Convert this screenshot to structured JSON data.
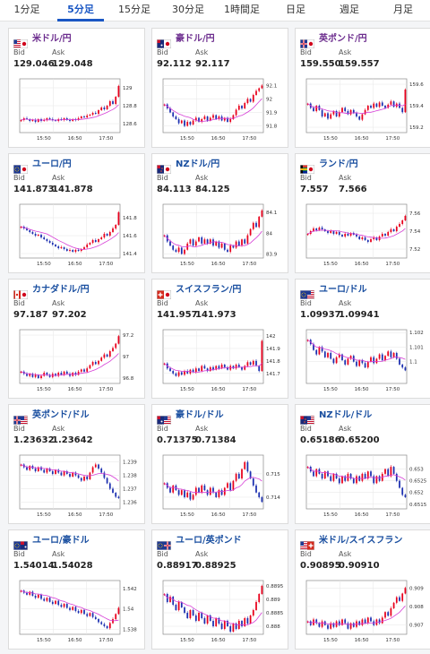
{
  "tabs": [
    {
      "label": "1分足",
      "active": false
    },
    {
      "label": "5分足",
      "active": true
    },
    {
      "label": "15分足",
      "active": false
    },
    {
      "label": "30分足",
      "active": false
    },
    {
      "label": "1時間足",
      "active": false
    },
    {
      "label": "日足",
      "active": false
    },
    {
      "label": "週足",
      "active": false
    },
    {
      "label": "月足",
      "active": false
    }
  ],
  "labels": {
    "bid": "Bid",
    "ask": "Ask"
  },
  "x_ticks": [
    "15:50",
    "16:50",
    "17:50"
  ],
  "colors": {
    "up": "#e8001c",
    "down": "#1c2fb0",
    "ma": "#d63dd6",
    "grid": "#e6e6e6",
    "frame": "#8a8a8a"
  },
  "cards": [
    {
      "pair": "米ドル/円",
      "flag": "flag-us-jp",
      "bid": "129.046",
      "ask": "129.048",
      "chart_data": {
        "type": "candlestick",
        "ylim": [
          128.5,
          129.1
        ],
        "yticks": [
          "129",
          "128.8",
          "128.6"
        ],
        "ytick_values": [
          129,
          128.8,
          128.6
        ],
        "close": [
          128.64,
          128.66,
          128.65,
          128.63,
          128.64,
          128.62,
          128.65,
          128.63,
          128.64,
          128.66,
          128.65,
          128.64,
          128.63,
          128.65,
          128.64,
          128.66,
          128.64,
          128.63,
          128.65,
          128.64,
          128.66,
          128.68,
          128.67,
          128.69,
          128.7,
          128.72,
          128.71,
          128.75,
          128.78,
          128.76,
          128.8,
          128.85,
          128.82,
          128.9,
          129.02
        ]
      }
    },
    {
      "pair": "豪ドル/円",
      "flag": "flag-au-jp",
      "bid": "92.112",
      "ask": "92.117",
      "chart_data": {
        "type": "candlestick",
        "ylim": [
          91.75,
          92.15
        ],
        "yticks": [
          "92.1",
          "92",
          "91.9",
          "91.8"
        ],
        "ytick_values": [
          92.1,
          92,
          91.9,
          91.8
        ],
        "close": [
          91.96,
          91.93,
          91.9,
          91.87,
          91.85,
          91.82,
          91.84,
          91.8,
          91.83,
          91.81,
          91.84,
          91.86,
          91.83,
          91.85,
          91.87,
          91.84,
          91.86,
          91.88,
          91.85,
          91.87,
          91.84,
          91.86,
          91.83,
          91.85,
          91.88,
          91.92,
          91.95,
          91.93,
          91.97,
          92.0,
          91.98,
          92.03,
          92.06,
          92.08,
          92.1
        ]
      }
    },
    {
      "pair": "英ポンド/円",
      "flag": "flag-uk-jp",
      "bid": "159.550",
      "ask": "159.557",
      "chart_data": {
        "type": "candlestick",
        "ylim": [
          159.15,
          159.65
        ],
        "yticks": [
          "159.6",
          "159.4",
          "159.2"
        ],
        "ytick_values": [
          159.6,
          159.4,
          159.2
        ],
        "close": [
          159.42,
          159.38,
          159.35,
          159.4,
          159.36,
          159.3,
          159.33,
          159.28,
          159.32,
          159.35,
          159.3,
          159.34,
          159.38,
          159.35,
          159.32,
          159.36,
          159.33,
          159.3,
          159.27,
          159.32,
          159.36,
          159.4,
          159.38,
          159.42,
          159.39,
          159.43,
          159.4,
          159.38,
          159.41,
          159.44,
          159.39,
          159.42,
          159.38,
          159.34,
          159.55
        ]
      }
    },
    {
      "pair": "ユーロ/円",
      "flag": "flag-eu-jp",
      "bid": "141.873",
      "ask": "141.878",
      "chart_data": {
        "type": "candlestick",
        "ylim": [
          141.35,
          141.95
        ],
        "yticks": [
          "141.8",
          "141.6",
          "141.4"
        ],
        "ytick_values": [
          141.8,
          141.6,
          141.4
        ],
        "close": [
          141.7,
          141.68,
          141.66,
          141.64,
          141.62,
          141.6,
          141.61,
          141.58,
          141.56,
          141.54,
          141.52,
          141.5,
          141.48,
          141.46,
          141.47,
          141.45,
          141.43,
          141.44,
          141.42,
          141.44,
          141.43,
          141.45,
          141.47,
          141.5,
          141.52,
          141.55,
          141.53,
          141.56,
          141.58,
          141.62,
          141.6,
          141.64,
          141.68,
          141.72,
          141.86
        ]
      }
    },
    {
      "pair": "NZドル/円",
      "flag": "flag-nz-jp",
      "bid": "84.113",
      "ask": "84.125",
      "chart_data": {
        "type": "candlestick",
        "ylim": [
          83.88,
          84.14
        ],
        "yticks": [
          "84.1",
          "84",
          "83.9"
        ],
        "ytick_values": [
          84.1,
          84,
          83.9
        ],
        "close": [
          83.99,
          83.96,
          83.94,
          83.92,
          83.91,
          83.93,
          83.9,
          83.92,
          83.95,
          83.97,
          83.94,
          83.96,
          83.98,
          83.95,
          83.97,
          83.95,
          83.97,
          83.94,
          83.96,
          83.93,
          83.95,
          83.92,
          83.91,
          83.94,
          83.93,
          83.96,
          83.94,
          83.97,
          83.95,
          83.99,
          84.02,
          84.05,
          84.03,
          84.08,
          84.11
        ]
      }
    },
    {
      "pair": "ランド/円",
      "flag": "flag-za-jp",
      "bid": "7.557",
      "ask": "7.566",
      "chart_data": {
        "type": "candlestick",
        "ylim": [
          7.51,
          7.57
        ],
        "yticks": [
          "7.56",
          "7.54",
          "7.52"
        ],
        "ytick_values": [
          7.56,
          7.54,
          7.52
        ],
        "close": [
          7.537,
          7.54,
          7.543,
          7.541,
          7.544,
          7.542,
          7.54,
          7.538,
          7.54,
          7.537,
          7.539,
          7.536,
          7.534,
          7.537,
          7.535,
          7.538,
          7.536,
          7.534,
          7.531,
          7.533,
          7.53,
          7.528,
          7.531,
          7.533,
          7.53,
          7.534,
          7.537,
          7.535,
          7.539,
          7.542,
          7.54,
          7.545,
          7.548,
          7.552,
          7.557
        ]
      }
    },
    {
      "pair": "カナダドル/円",
      "flag": "flag-ca-jp",
      "bid": "97.187",
      "ask": "97.202",
      "chart_data": {
        "type": "candlestick",
        "ylim": [
          96.75,
          97.25
        ],
        "yticks": [
          "97.2",
          "97",
          "96.8"
        ],
        "ytick_values": [
          97.2,
          97,
          96.8
        ],
        "close": [
          96.86,
          96.84,
          96.82,
          96.84,
          96.81,
          96.83,
          96.8,
          96.82,
          96.85,
          96.83,
          96.81,
          96.84,
          96.82,
          96.85,
          96.83,
          96.86,
          96.84,
          96.82,
          96.85,
          96.83,
          96.86,
          96.88,
          96.86,
          96.89,
          96.92,
          96.95,
          96.93,
          96.96,
          96.99,
          97.02,
          97.0,
          97.05,
          97.08,
          97.12,
          97.19
        ]
      }
    },
    {
      "pair": "スイスフラン/円",
      "flag": "flag-ch-jp",
      "bid": "141.957",
      "ask": "141.973",
      "chart_data": {
        "type": "candlestick",
        "ylim": [
          141.62,
          142.05
        ],
        "yticks": [
          "142",
          "141.9",
          "141.8",
          "141.7"
        ],
        "ytick_values": [
          142,
          141.9,
          141.8,
          141.7
        ],
        "close": [
          141.78,
          141.74,
          141.72,
          141.7,
          141.68,
          141.71,
          141.69,
          141.72,
          141.7,
          141.73,
          141.71,
          141.74,
          141.72,
          141.76,
          141.74,
          141.72,
          141.75,
          141.73,
          141.76,
          141.74,
          141.77,
          141.75,
          141.73,
          141.76,
          141.74,
          141.77,
          141.75,
          141.73,
          141.76,
          141.79,
          141.77,
          141.8,
          141.76,
          141.72,
          141.96
        ]
      }
    },
    {
      "pair": "ユーロ/ドル",
      "flag": "flag-eu-us",
      "bid": "1.09937",
      "ask": "1.09941",
      "chart_data": {
        "type": "candlestick",
        "ylim": [
          1.0985,
          1.1022
        ],
        "yticks": [
          "1.102",
          "1.101",
          "1.1"
        ],
        "ytick_values": [
          1.102,
          1.101,
          1.1
        ],
        "close": [
          1.1015,
          1.1012,
          1.1008,
          1.1005,
          1.101,
          1.1007,
          1.1003,
          1.1006,
          1.1002,
          1.0999,
          1.1003,
          1.1005,
          1.1001,
          1.0998,
          1.1002,
          1.1004,
          1.1,
          1.0997,
          1.1001,
          1.0999,
          1.0996,
          1.1,
          1.1003,
          1.0999,
          1.1002,
          1.1005,
          1.1001,
          1.1004,
          1.1007,
          1.1003,
          1.1006,
          1.1002,
          1.0998,
          1.0996,
          1.0994
        ]
      }
    },
    {
      "pair": "英ポンド/ドル",
      "flag": "flag-uk-us",
      "bid": "1.23632",
      "ask": "1.23642",
      "chart_data": {
        "type": "candlestick",
        "ylim": [
          1.2355,
          1.2395
        ],
        "yticks": [
          "1.239",
          "1.238",
          "1.237",
          "1.236"
        ],
        "ytick_values": [
          1.239,
          1.238,
          1.237,
          1.236
        ],
        "close": [
          1.2388,
          1.2386,
          1.2384,
          1.2387,
          1.2385,
          1.2383,
          1.2386,
          1.2384,
          1.2382,
          1.2385,
          1.2383,
          1.2381,
          1.2384,
          1.2382,
          1.238,
          1.2383,
          1.2381,
          1.2379,
          1.2382,
          1.238,
          1.2378,
          1.2376,
          1.2379,
          1.2377,
          1.2382,
          1.2386,
          1.2388,
          1.2385,
          1.2382,
          1.2378,
          1.2374,
          1.237,
          1.2367,
          1.2364,
          1.2363
        ]
      }
    },
    {
      "pair": "豪ドル/ドル",
      "flag": "flag-au-us",
      "bid": "0.71375",
      "ask": "0.71384",
      "chart_data": {
        "type": "candlestick",
        "ylim": [
          0.7135,
          0.7158
        ],
        "yticks": [
          "0.715",
          "0.714"
        ],
        "ytick_values": [
          0.715,
          0.714
        ],
        "close": [
          0.7146,
          0.7144,
          0.7142,
          0.7145,
          0.7143,
          0.7141,
          0.7143,
          0.714,
          0.7142,
          0.7139,
          0.7141,
          0.7144,
          0.7142,
          0.7145,
          0.7143,
          0.7141,
          0.7144,
          0.7142,
          0.714,
          0.7143,
          0.7141,
          0.7144,
          0.7146,
          0.7143,
          0.7147,
          0.715,
          0.7148,
          0.7152,
          0.7155,
          0.7151,
          0.7148,
          0.7145,
          0.7142,
          0.714,
          0.7138
        ]
      }
    },
    {
      "pair": "NZドル/ドル",
      "flag": "flag-nz-us",
      "bid": "0.65186",
      "ask": "0.65200",
      "chart_data": {
        "type": "candlestick",
        "ylim": [
          0.6513,
          0.6536
        ],
        "yticks": [
          "0.653",
          "0.6525",
          "0.652",
          "0.6515"
        ],
        "ytick_values": [
          0.653,
          0.6525,
          0.652,
          0.6515
        ],
        "close": [
          0.6531,
          0.6529,
          0.6527,
          0.653,
          0.6528,
          0.6526,
          0.6529,
          0.6527,
          0.6525,
          0.6528,
          0.6526,
          0.6524,
          0.6527,
          0.6525,
          0.6528,
          0.6526,
          0.6524,
          0.6527,
          0.6525,
          0.6528,
          0.6526,
          0.6529,
          0.6527,
          0.6524,
          0.6527,
          0.6525,
          0.6528,
          0.653,
          0.6527,
          0.6531,
          0.6528,
          0.6525,
          0.6522,
          0.6519,
          0.6518
        ]
      }
    },
    {
      "pair": "ユーロ/豪ドル",
      "flag": "flag-eu-au",
      "bid": "1.54014",
      "ask": "1.54028",
      "chart_data": {
        "type": "candlestick",
        "ylim": [
          1.5375,
          1.5428
        ],
        "yticks": [
          "1.542",
          "1.54",
          "1.538"
        ],
        "ytick_values": [
          1.542,
          1.54,
          1.538
        ],
        "close": [
          1.5418,
          1.5416,
          1.5414,
          1.5417,
          1.5413,
          1.5411,
          1.5414,
          1.541,
          1.5408,
          1.5411,
          1.5407,
          1.5405,
          1.5408,
          1.5404,
          1.5402,
          1.5405,
          1.5401,
          1.5399,
          1.5402,
          1.5398,
          1.5396,
          1.5399,
          1.5395,
          1.5393,
          1.5396,
          1.5392,
          1.539,
          1.5387,
          1.5385,
          1.5383,
          1.5381,
          1.5386,
          1.539,
          1.5395,
          1.5401
        ]
      }
    },
    {
      "pair": "ユーロ/英ポンド",
      "flag": "flag-eu-uk",
      "bid": "0.88917",
      "ask": "0.88925",
      "chart_data": {
        "type": "candlestick",
        "ylim": [
          0.8877,
          0.8897
        ],
        "yticks": [
          "0.8895",
          "0.889",
          "0.8885",
          "0.888"
        ],
        "ytick_values": [
          0.8895,
          0.889,
          0.8885,
          0.888
        ],
        "close": [
          0.8892,
          0.8889,
          0.8891,
          0.8888,
          0.8886,
          0.8889,
          0.8887,
          0.8885,
          0.8883,
          0.8886,
          0.8884,
          0.8882,
          0.8885,
          0.8883,
          0.8881,
          0.8884,
          0.8882,
          0.888,
          0.8883,
          0.8881,
          0.8879,
          0.8882,
          0.888,
          0.8878,
          0.8881,
          0.8879,
          0.8882,
          0.888,
          0.8883,
          0.8881,
          0.8884,
          0.8886,
          0.8889,
          0.8892,
          0.8895
        ]
      }
    },
    {
      "pair": "米ドル/スイスフラン",
      "flag": "flag-us-ch",
      "bid": "0.90895",
      "ask": "0.90910",
      "chart_data": {
        "type": "candlestick",
        "ylim": [
          0.9065,
          0.9094
        ],
        "yticks": [
          "0.909",
          "0.908",
          "0.907"
        ],
        "ytick_values": [
          0.909,
          0.908,
          0.907
        ],
        "close": [
          0.9072,
          0.907,
          0.9073,
          0.9071,
          0.9069,
          0.9072,
          0.907,
          0.9068,
          0.9071,
          0.9069,
          0.9072,
          0.907,
          0.9073,
          0.9071,
          0.9068,
          0.9071,
          0.9069,
          0.9072,
          0.907,
          0.9073,
          0.9071,
          0.9074,
          0.9072,
          0.907,
          0.9073,
          0.9071,
          0.9074,
          0.9077,
          0.9075,
          0.9079,
          0.9082,
          0.9085,
          0.9083,
          0.9087,
          0.909
        ]
      }
    }
  ]
}
